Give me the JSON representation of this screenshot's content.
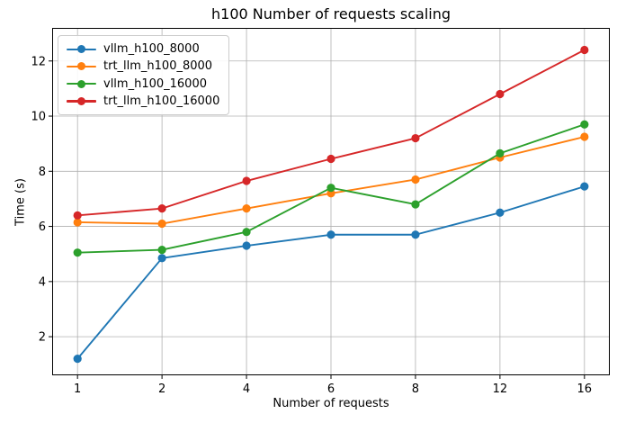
{
  "chart_data": {
    "type": "line",
    "title": "h100 Number of requests scaling",
    "xlabel": "Number of requests",
    "ylabel": "Time (s)",
    "x": [
      1,
      2,
      4,
      6,
      8,
      12,
      16
    ],
    "x_tick_labels": [
      "1",
      "2",
      "4",
      "6",
      "8",
      "12",
      "16"
    ],
    "x_spacing": "categorical-even",
    "x_margin": 0.3,
    "yticks": [
      2,
      4,
      6,
      8,
      10,
      12
    ],
    "ylim": [
      0.6,
      13.2
    ],
    "grid": true,
    "grid_color": "#b0b0b0",
    "spine_color": "#000000",
    "background": "#ffffff",
    "marker": "o",
    "legend_position": "upper left",
    "series": [
      {
        "name": "vllm_h100_8000",
        "color": "#1f77b4",
        "values": [
          1.2,
          4.85,
          5.3,
          5.7,
          5.7,
          6.5,
          7.45
        ]
      },
      {
        "name": "trt_llm_h100_8000",
        "color": "#ff7f0e",
        "values": [
          6.15,
          6.1,
          6.65,
          7.2,
          7.7,
          8.5,
          9.25
        ]
      },
      {
        "name": "vllm_h100_16000",
        "color": "#2ca02c",
        "values": [
          5.05,
          5.15,
          5.8,
          7.4,
          6.8,
          8.65,
          9.7
        ]
      },
      {
        "name": "trt_llm_h100_16000",
        "color": "#d62728",
        "values": [
          6.4,
          6.65,
          7.65,
          8.45,
          9.2,
          10.8,
          12.4
        ]
      }
    ]
  }
}
